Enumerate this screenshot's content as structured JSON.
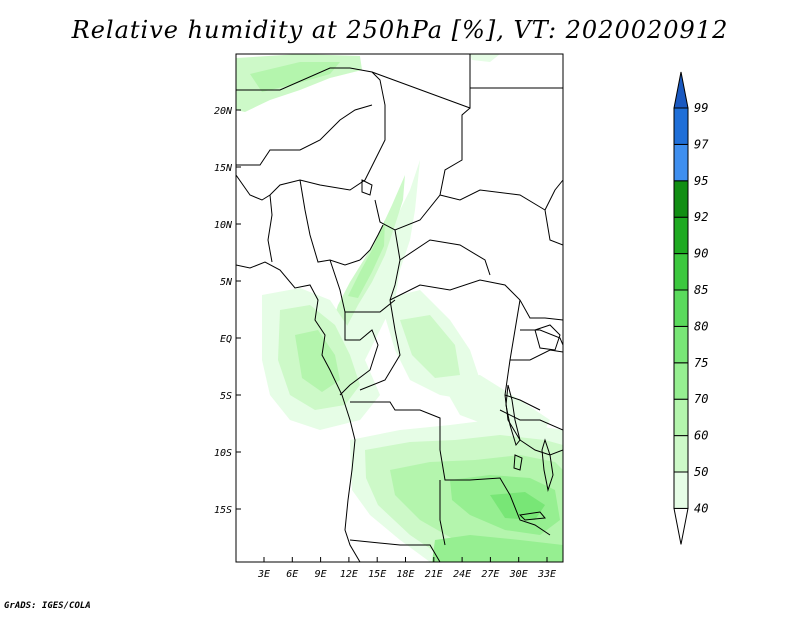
{
  "title": "Relative humidity at 250hPa [%], VT: 2020020912",
  "credit": "GrADS: IGES/COLA",
  "map": {
    "lat_ticks": [
      "20N",
      "15N",
      "10N",
      "5N",
      "EQ",
      "5S",
      "10S",
      "15S"
    ],
    "lon_ticks": [
      "3E",
      "6E",
      "9E",
      "12E",
      "15E",
      "18E",
      "21E",
      "24E",
      "27E",
      "30E",
      "33E"
    ]
  },
  "colorbar": {
    "levels": [
      "40",
      "50",
      "60",
      "70",
      "75",
      "80",
      "85",
      "90",
      "92",
      "95",
      "97",
      "99"
    ],
    "colors": [
      "#ffffff",
      "#e6fde6",
      "#cdf9c8",
      "#b4f5ad",
      "#96ef91",
      "#78e676",
      "#5ada5c",
      "#3cc83e",
      "#1eaa21",
      "#118e13",
      "#3f8fef",
      "#1f6fd8",
      "#1a59c0"
    ]
  }
}
